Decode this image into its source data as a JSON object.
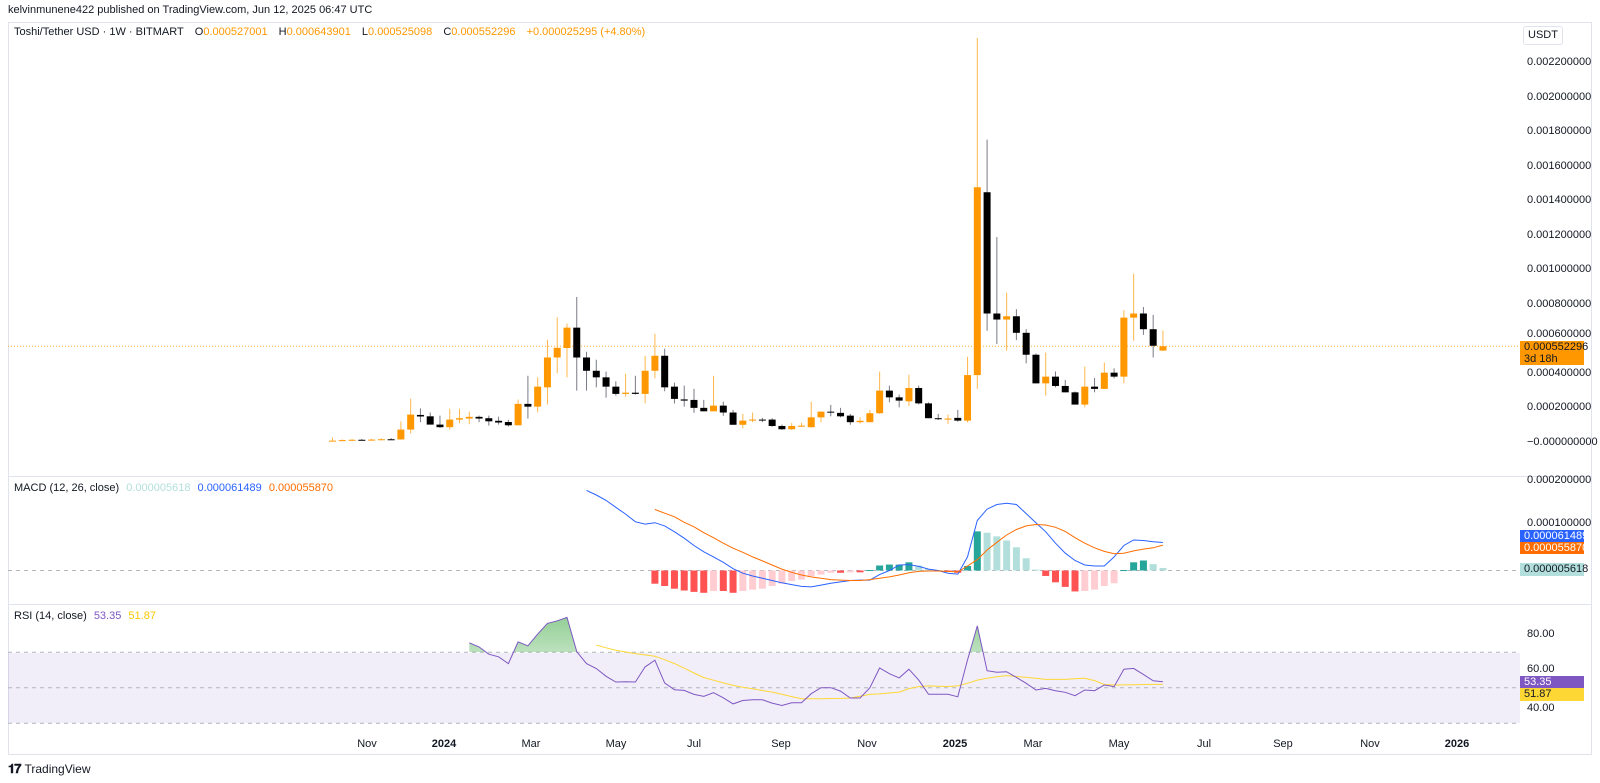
{
  "header": {
    "publisher_line": "kelvinmunene422 published on TradingView.com, Jun 12, 2025 06:47 UTC"
  },
  "legend": {
    "symbol": "Toshi/Tether USD · 1W · BITMART",
    "o_label": "O",
    "o": "0.000527001",
    "h_label": "H",
    "h": "0.000643901",
    "l_label": "L",
    "l": "0.000525098",
    "c_label": "C",
    "c": "0.000552296",
    "change": "+0.000025295 (+4.80%)"
  },
  "price_axis": {
    "currency": "USDT",
    "ticks": [
      "0.002200000",
      "0.002000000",
      "0.001800000",
      "0.001600000",
      "0.001400000",
      "0.001200000",
      "0.001000000",
      "0.000800000",
      "0.000600000",
      "0.000400000",
      "0.000200000",
      "−0.000000000"
    ],
    "last_price": "0.000552296",
    "countdown": "3d 18h"
  },
  "macd": {
    "title": "MACD (12, 26, close)",
    "hist_value": "0.000005618",
    "macd_value": "0.000061489",
    "signal_value": "0.000055870",
    "ticks": [
      "0.000200000",
      "0.000100000"
    ]
  },
  "rsi": {
    "title": "RSI (14, close)",
    "value": "53.35",
    "ma_value": "51.87",
    "ticks": [
      "80.00",
      "60.00",
      "40.00"
    ]
  },
  "time_axis": {
    "labels": [
      "Nov",
      "2024",
      "Mar",
      "May",
      "Jul",
      "Sep",
      "Nov",
      "2025",
      "Mar",
      "May",
      "Jul",
      "Sep",
      "Nov",
      "2026"
    ]
  },
  "footer": {
    "brand": "TradingView"
  },
  "colors": {
    "up": "#ff9800",
    "down": "#000000",
    "up_wick": "#ffb74d",
    "down_wick": "#787b86",
    "macd_line": "#2962ff",
    "signal_line": "#ff6d00",
    "hist_pos_grow": "#26a69a",
    "hist_pos_fall": "#b2dfdb",
    "hist_neg_grow": "#ff5252",
    "hist_neg_fall": "#ffcdd2",
    "rsi_line": "#7e57c2",
    "rsi_ma": "#fdd835",
    "overbought_fill": "#4caf50"
  },
  "chart_data": {
    "type": "candlestick",
    "interval": "1W",
    "ylim": [
      0,
      0.0024
    ],
    "candles_ohlc": [
      [
        2e-06,
        2.3e-05,
        0.0,
        5e-06
      ],
      [
        5e-06,
        1.2e-05,
        2e-06,
        8e-06
      ],
      [
        8e-06,
        1.4e-05,
        4e-06,
        1e-05
      ],
      [
        1e-05,
        1.5e-05,
        6e-06,
        8e-06
      ],
      [
        8e-06,
        1.6e-05,
        5e-06,
        1.1e-05
      ],
      [
        1.1e-05,
        1.8e-05,
        8e-06,
        1.3e-05
      ],
      [
        1.3e-05,
        2e-05,
        9e-06,
        1.2e-05
      ],
      [
        1.2e-05,
        0.000117,
        1e-05,
        6.9e-05
      ],
      [
        6.9e-05,
        0.000248,
        4.6e-05,
        0.000156
      ],
      [
        0.000154,
        0.000192,
        0.000112,
        0.000145
      ],
      [
        0.000146,
        0.000168,
        9.8e-05,
        9.8e-05
      ],
      [
        9.8e-05,
        0.00015,
        7.9e-05,
        8.3e-05
      ],
      [
        8.3e-05,
        0.00019,
        6.9e-05,
        0.000127
      ],
      [
        0.000127,
        0.00019,
        0.000106,
        0.000135
      ],
      [
        0.000133,
        0.000173,
        0.0001,
        0.000143
      ],
      [
        0.000143,
        0.00015,
        0.000112,
        0.000133
      ],
      [
        0.000135,
        0.00015,
        9.2e-05,
        0.000117
      ],
      [
        0.00012,
        0.000144,
        9.8e-05,
        0.00011
      ],
      [
        0.000113,
        0.000126,
        8.7e-05,
        9.4e-05
      ],
      [
        9.4e-05,
        0.000243,
        9.4e-05,
        0.000218
      ],
      [
        0.000218,
        0.000381,
        0.000133,
        0.000202
      ],
      [
        0.000202,
        0.000372,
        0.000169,
        0.000318
      ],
      [
        0.000314,
        0.00059,
        0.000214,
        0.000487
      ],
      [
        0.000487,
        0.00072,
        0.000395,
        0.000543
      ],
      [
        0.000542,
        0.000684,
        0.000372,
        0.00066
      ],
      [
        0.00066,
        0.000838,
        0.000295,
        0.000487
      ],
      [
        0.000487,
        0.00052,
        0.000295,
        0.00041
      ],
      [
        0.00041,
        0.000474,
        0.000314,
        0.000372
      ],
      [
        0.000372,
        0.000405,
        0.000254,
        0.000318
      ],
      [
        0.000318,
        0.000349,
        0.000266,
        0.000276
      ],
      [
        0.000276,
        0.000393,
        0.00026,
        0.000283
      ],
      [
        0.000283,
        0.000381,
        0.000272,
        0.000276
      ],
      [
        0.000276,
        0.000497,
        0.000221,
        0.00041
      ],
      [
        0.00041,
        0.000624,
        0.000366,
        0.000497
      ],
      [
        0.000497,
        0.000538,
        0.000291,
        0.000314
      ],
      [
        0.000318,
        0.000341,
        0.00022,
        0.000247
      ],
      [
        0.000244,
        0.000324,
        0.000202,
        0.000237
      ],
      [
        0.000241,
        0.000305,
        0.000166,
        0.000195
      ],
      [
        0.000195,
        0.000241,
        0.000175,
        0.000175
      ],
      [
        0.000175,
        0.000381,
        0.000175,
        0.000208
      ],
      [
        0.000208,
        0.000231,
        0.000149,
        0.000168
      ],
      [
        0.000168,
        0.000183,
        9.7e-05,
        9.7e-05
      ],
      [
        9.7e-05,
        0.00016,
        7.7e-05,
        0.000121
      ],
      [
        0.000121,
        0.000168,
        0.000112,
        0.000127
      ],
      [
        0.000127,
        0.000137,
        0.000112,
        0.000125
      ],
      [
        0.000127,
        0.000135,
        8.5e-05,
        9e-05
      ],
      [
        9e-05,
        9.8e-05,
        6.7e-05,
        7.1e-05
      ],
      [
        7.1e-05,
        0.000108,
        6.7e-05,
        9e-05
      ],
      [
        9e-05,
        0.000108,
        8.5e-05,
        9.2e-05
      ],
      [
        8.3e-05,
        0.000231,
        8e-05,
        0.00014
      ],
      [
        0.00014,
        0.000175,
        0.000112,
        0.000173
      ],
      [
        0.000173,
        0.000212,
        0.000146,
        0.000168
      ],
      [
        0.000166,
        0.000195,
        0.00014,
        0.000146
      ],
      [
        0.00015,
        0.00016,
        9.7e-05,
        0.000112
      ],
      [
        0.000112,
        0.00014,
        0.000105,
        0.00012
      ],
      [
        0.000112,
        0.000183,
        0.00011,
        0.000164
      ],
      [
        0.000164,
        0.000405,
        0.00016,
        0.000295
      ],
      [
        0.000295,
        0.000324,
        0.000227,
        0.000256
      ],
      [
        0.000256,
        0.000272,
        0.000198,
        0.000237
      ],
      [
        0.000233,
        0.000387,
        0.000206,
        0.00031
      ],
      [
        0.00031,
        0.000324,
        0.000215,
        0.000221
      ],
      [
        0.000221,
        0.000227,
        0.000135,
        0.000135
      ],
      [
        0.000135,
        0.00016,
        0.000125,
        0.000129
      ],
      [
        0.00013,
        0.000156,
        0.000102,
        0.000133
      ],
      [
        0.000137,
        0.000183,
        0.000115,
        0.000121
      ],
      [
        0.000121,
        0.000491,
        0.00011,
        0.000385
      ],
      [
        0.000385,
        0.00234,
        0.000305,
        0.001474
      ],
      [
        0.001445,
        0.00175,
        0.000642,
        0.000742
      ],
      [
        0.000742,
        0.001185,
        0.000565,
        0.000707
      ],
      [
        0.000707,
        0.000863,
        0.000526,
        0.000726
      ],
      [
        0.000726,
        0.000767,
        0.000588,
        0.00063
      ],
      [
        0.00063,
        0.000651,
        0.000453,
        0.000503
      ],
      [
        0.000503,
        0.00051,
        0.000337,
        0.000337
      ],
      [
        0.000337,
        0.000516,
        0.000266,
        0.000376
      ],
      [
        0.000376,
        0.000406,
        0.000314,
        0.000322
      ],
      [
        0.000322,
        0.000357,
        0.000285,
        0.000285
      ],
      [
        0.000285,
        0.00029,
        0.000214,
        0.000214
      ],
      [
        0.000214,
        0.000434,
        0.000198,
        0.000318
      ],
      [
        0.000318,
        0.000368,
        0.000285,
        0.000305
      ],
      [
        0.000305,
        0.000458,
        0.000305,
        0.000399
      ],
      [
        0.000399,
        0.000424,
        0.000366,
        0.000376
      ],
      [
        0.000376,
        0.000761,
        0.000337,
        0.000718
      ],
      [
        0.000718,
        0.000973,
        0.000584,
        0.000742
      ],
      [
        0.000742,
        0.00078,
        0.000618,
        0.000651
      ],
      [
        0.000651,
        0.000734,
        0.000487,
        0.000555
      ],
      [
        0.000527,
        0.000643901,
        0.000525098,
        0.000552296
      ]
    ],
    "macd": [
      null,
      null,
      null,
      null,
      null,
      null,
      null,
      null,
      null,
      null,
      null,
      null,
      null,
      null,
      null,
      null,
      null,
      null,
      null,
      null,
      null,
      null,
      null,
      null,
      null,
      null,
      0.000176,
      0.000166,
      0.000154,
      0.000139,
      0.000124,
      0.000107,
      0.000102,
      0.000105,
      9.8e-05,
      8.5e-05,
      7.1e-05,
      5.5e-05,
      4.1e-05,
      3e-05,
      1.8e-05,
      4e-06,
      -6e-06,
      -1.2e-05,
      -1.7e-05,
      -2.2e-05,
      -2.7e-05,
      -3.1e-05,
      -3.5e-05,
      -3.6e-05,
      -3.2e-05,
      -2.8e-05,
      -2.5e-05,
      -2.2e-05,
      -2.1e-05,
      -2.1e-05,
      -9e-06,
      0.0,
      1.2e-05,
      1.3e-05,
      9e-06,
      3e-06,
      0.0,
      -6e-06,
      -8e-06,
      3e-05,
      0.00011,
      0.000135,
      0.000145,
      0.000148,
      0.000145,
      0.000125,
      0.000105,
      8.5e-05,
      6e-05,
      3.8e-05,
      2.2e-05,
      1.2e-05,
      1e-05,
      1e-05,
      3e-05,
      5.5e-05,
      6.7e-05,
      6.6e-05,
      6.3e-05,
      6.1489e-05
    ],
    "signal": [
      null,
      null,
      null,
      null,
      null,
      null,
      null,
      null,
      null,
      null,
      null,
      null,
      null,
      null,
      null,
      null,
      null,
      null,
      null,
      null,
      null,
      null,
      null,
      null,
      null,
      null,
      null,
      null,
      null,
      null,
      null,
      null,
      null,
      0.000134,
      0.000126,
      0.000118,
      0.000106,
      9.6e-05,
      8.3e-05,
      7.2e-05,
      6e-05,
      4.9e-05,
      4e-05,
      3e-05,
      2.1e-05,
      1.2e-05,
      3e-06,
      -4e-06,
      -1e-05,
      -1.4e-05,
      -1.7e-05,
      -2e-05,
      -2.1e-05,
      -2.2e-05,
      -2.2e-05,
      -2e-05,
      -1.7e-05,
      -1.4e-05,
      -1e-05,
      -5e-06,
      -2e-06,
      -1e-06,
      -1e-06,
      -2e-06,
      -3e-06,
      1e-05,
      2.4e-05,
      4.5e-05,
      6.2e-05,
      7.8e-05,
      9e-05,
      9.8e-05,
      0.000101,
      0.0001,
      9.5e-05,
      8.6e-05,
      7.2e-05,
      6e-05,
      5e-05,
      4.2e-05,
      3.7e-05,
      3.8e-05,
      4.3e-05,
      4.7e-05,
      5e-05,
      5.587e-05
    ],
    "histogram": [
      null,
      null,
      null,
      null,
      null,
      null,
      null,
      null,
      null,
      null,
      null,
      null,
      null,
      null,
      null,
      null,
      null,
      null,
      null,
      null,
      null,
      null,
      null,
      null,
      null,
      null,
      null,
      null,
      null,
      null,
      null,
      null,
      null,
      -2.9e-05,
      -3.4e-05,
      -4e-05,
      -4.4e-05,
      -4.7e-05,
      -4.9e-05,
      -4.5e-05,
      -4.5e-05,
      -4.9e-05,
      -4.5e-05,
      -4.2e-05,
      -4e-05,
      -3.4e-05,
      -2.9e-05,
      -2.3e-05,
      -2e-05,
      -1.2e-05,
      -9e-06,
      -5e-06,
      -5e-06,
      -4e-06,
      -4e-06,
      1e-06,
      1.1e-05,
      1.3e-05,
      1.3e-05,
      1.8e-05,
      1.1e-05,
      3e-06,
      1e-06,
      -3e-06,
      -5e-06,
      1e-05,
      8.6e-05,
      8.3e-05,
      7.5e-05,
      6.6e-05,
      5.1e-05,
      2.7e-05,
      2e-06,
      -1.2e-05,
      -2.6e-05,
      -3.6e-05,
      -4.6e-05,
      -4.5e-05,
      -4.2e-05,
      -3.4e-05,
      -2.8e-05,
      1e-06,
      1.8e-05,
      2.2e-05,
      1.4e-05,
      5.618e-06
    ],
    "macd_axis_ticks": [
      0.0002,
      0.0001
    ],
    "rsi": [
      null,
      null,
      null,
      null,
      null,
      null,
      null,
      null,
      null,
      null,
      null,
      null,
      null,
      null,
      75.3,
      73,
      68.9,
      67.4,
      63.6,
      75.8,
      73.6,
      80.2,
      86.2,
      87.7,
      89.6,
      70.2,
      63.6,
      60.8,
      56.4,
      53.2,
      53.4,
      53.2,
      61.7,
      65.5,
      52.6,
      48.9,
      48.5,
      46.2,
      45.1,
      47.2,
      44.3,
      40.9,
      42.8,
      43.2,
      43.2,
      41.3,
      40,
      41.5,
      41.5,
      46.6,
      50,
      50,
      48.1,
      44.2,
      44.2,
      50,
      61.1,
      57.9,
      55.5,
      60.4,
      54.3,
      46.3,
      46.3,
      46.3,
      44.9,
      65.6,
      84.8,
      59.6,
      58.7,
      59,
      55.8,
      52.5,
      48.7,
      49.6,
      48.3,
      47.4,
      45.5,
      48.7,
      48.3,
      51.5,
      50.6,
      60.4,
      60.9,
      57.5,
      53.9,
      53.35
    ],
    "rsi_ma": [
      null,
      null,
      null,
      null,
      null,
      null,
      null,
      null,
      null,
      null,
      null,
      null,
      null,
      null,
      null,
      null,
      null,
      null,
      null,
      null,
      null,
      null,
      null,
      null,
      null,
      null,
      null,
      74,
      72.5,
      71.1,
      70.1,
      69.2,
      68.5,
      67.7,
      65.8,
      63.6,
      61,
      58.3,
      55.7,
      54.2,
      52.7,
      51.3,
      50.3,
      49.4,
      48.4,
      47.5,
      46.3,
      45,
      43.8,
      43.8,
      43.8,
      43.9,
      44,
      44.2,
      45.2,
      46.2,
      46.5,
      47,
      47.5,
      49.5,
      50.6,
      51,
      50.8,
      50.7,
      51,
      52.5,
      54.3,
      55.3,
      56.2,
      56.8,
      56.3,
      55.8,
      55.3,
      54.7,
      54.7,
      54.7,
      55,
      55.3,
      54,
      51.8,
      51.5,
      51.6,
      51.7,
      51.8,
      51.85,
      51.87
    ],
    "rsi_levels": {
      "upper": 70,
      "middle": 50,
      "lower": 30
    },
    "rsi_ylim": [
      20,
      100
    ]
  }
}
